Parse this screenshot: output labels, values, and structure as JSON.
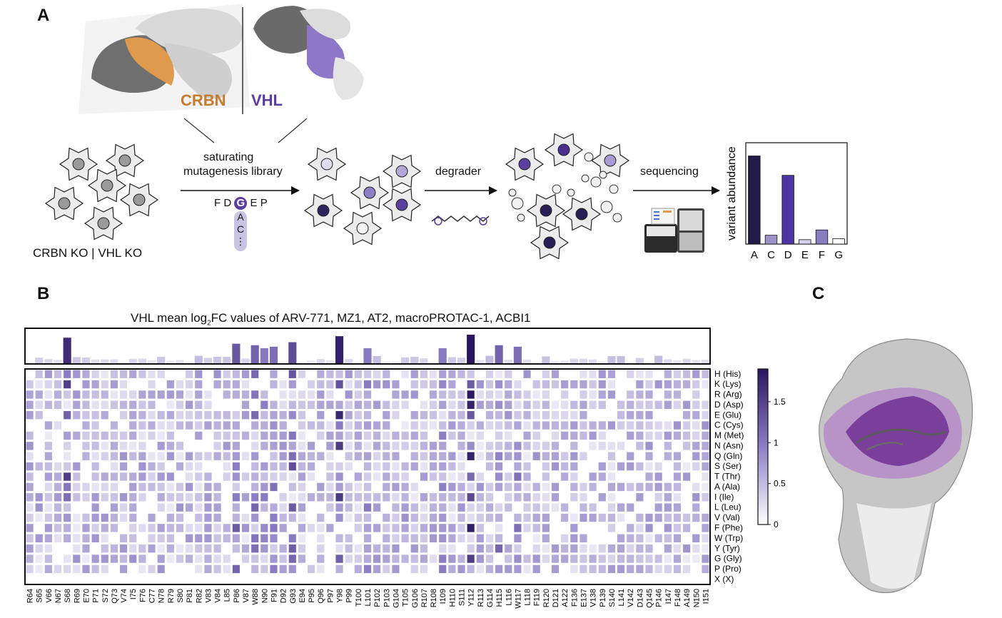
{
  "panels": {
    "a": "A",
    "b": "B",
    "c": "C"
  },
  "panel_a": {
    "crbn_label": "CRBN",
    "vhl_label": "VHL",
    "ko_label": "CRBN KO | VHL KO",
    "library_label_line1": "saturating",
    "library_label_line2": "mutagenesis library",
    "sequence_letters": [
      "F",
      "D",
      "G",
      "E",
      "P"
    ],
    "variant_letters": [
      "A",
      "C",
      "⋮"
    ],
    "degrader_label": "degrader",
    "sequencing_label": "sequencing",
    "colors": {
      "crbn": "#c87a2e",
      "vhl": "#5a3f9e"
    },
    "abundance_chart": {
      "type": "bar",
      "ylabel": "variant abundance",
      "categories": [
        "A",
        "C",
        "D",
        "E",
        "F",
        "G"
      ],
      "values": [
        1.0,
        0.1,
        0.78,
        0.05,
        0.16,
        0.06
      ],
      "ylim": [
        0,
        1.15
      ],
      "bar_colors": [
        "#231a4a",
        "#9d92c8",
        "#4d35a3",
        "#d5d2ea",
        "#8a7cc0",
        "#ffffff"
      ]
    }
  },
  "panel_b": {
    "title_prefix": "VHL mean log",
    "title_sub": "2",
    "title_suffix": "FC values of ARV-771, MZ1, AT2, macroPROTAC-1, ACBI1",
    "positions": [
      "R64",
      "S65",
      "V66",
      "N67",
      "S68",
      "R69",
      "E70",
      "P71",
      "S72",
      "Q73",
      "V74",
      "I75",
      "F76",
      "C77",
      "N78",
      "R79",
      "S80",
      "P81",
      "R82",
      "V83",
      "V84",
      "L85",
      "P86",
      "V87",
      "W88",
      "N90",
      "F91",
      "D92",
      "G93",
      "E94",
      "P95",
      "Q96",
      "P97",
      "Y98",
      "P99",
      "T100",
      "L101",
      "P102",
      "P103",
      "G104",
      "T105",
      "G106",
      "R107",
      "R108",
      "I109",
      "H110",
      "S111",
      "Y112",
      "R113",
      "G114",
      "H115",
      "L116",
      "W117",
      "L118",
      "F119",
      "R120",
      "D121",
      "A122",
      "F136",
      "E137",
      "V138",
      "P139",
      "S140",
      "L141",
      "V142",
      "D143",
      "Q145",
      "P146",
      "I147",
      "F148",
      "A149",
      "N150",
      "I151"
    ],
    "rows": [
      "H (His)",
      "K (Lys)",
      "R (Arg)",
      "D (Asp)",
      "E (Glu)",
      "C (Cys)",
      "M (Met)",
      "N (Asn)",
      "Q (Gln)",
      "S (Ser)",
      "T (Thr)",
      "A (Ala)",
      "I (Ile)",
      "L (Leu)",
      "V (Val)",
      "F (Phe)",
      "W (Trp)",
      "Y (Tyr)",
      "G (Gly)",
      "P (Pro)",
      "X (X)"
    ],
    "colorbar_ticks": [
      "1.5",
      "1",
      "0.5",
      "0"
    ],
    "cmap": {
      "min": 0,
      "max": 1.9,
      "low": "#ffffff",
      "mid": "#8c7ec4",
      "high": "#2a1660"
    },
    "hotspots": [
      {
        "pos": "S68",
        "value": 1.7
      },
      {
        "pos": "W88",
        "value": 1.2
      },
      {
        "pos": "F91",
        "value": 1.1
      },
      {
        "pos": "G93",
        "value": 1.4
      },
      {
        "pos": "Y98",
        "value": 1.8
      },
      {
        "pos": "Y112",
        "value": 1.9
      },
      {
        "pos": "H115",
        "value": 1.2
      },
      {
        "pos": "W117",
        "value": 1.1
      },
      {
        "pos": "L101",
        "value": 1.0
      },
      {
        "pos": "P86",
        "value": 1.3
      },
      {
        "pos": "N90",
        "value": 1.0
      },
      {
        "pos": "I109",
        "value": 1.0
      }
    ]
  },
  "panel_c": {
    "colors": {
      "surface": "#bfbfbf",
      "hotspot": "#7a3f9a",
      "light": "#e8e8e8"
    }
  }
}
